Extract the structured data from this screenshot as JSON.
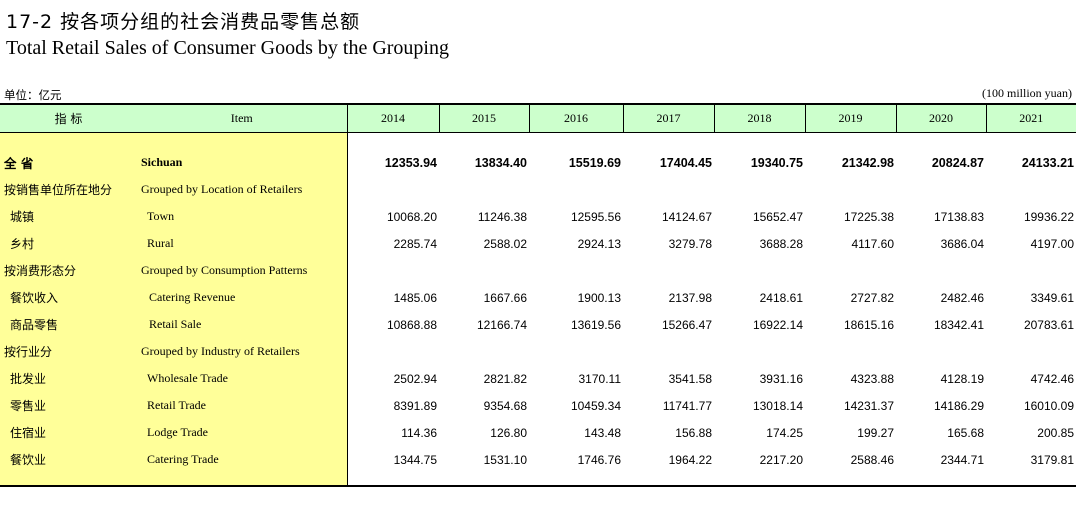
{
  "header": {
    "title_cn": "17-2   按各项分组的社会消费品零售总额",
    "title_en": "Total Retail Sales of Consumer Goods by the Grouping",
    "unit_cn": "单位：亿元",
    "unit_en": "(100 million yuan)"
  },
  "table": {
    "col_cn": "指    标",
    "col_en": "Item",
    "years": [
      "2014",
      "2015",
      "2016",
      "2017",
      "2018",
      "2019",
      "2020",
      "2021"
    ],
    "rows": [
      {
        "cn": "全 省",
        "en": "Sichuan",
        "values": [
          "12353.94",
          "13834.40",
          "15519.69",
          "17404.45",
          "19340.75",
          "21342.98",
          "20824.87",
          "24133.21"
        ]
      },
      {
        "cn": "按销售单位所在地分",
        "en": "Grouped by Location of Retailers",
        "values": [
          "",
          "",
          "",
          "",
          "",
          "",
          "",
          ""
        ]
      },
      {
        "cn": "城镇",
        "en": "Town",
        "values": [
          "10068.20",
          "11246.38",
          "12595.56",
          "14124.67",
          "15652.47",
          "17225.38",
          "17138.83",
          "19936.22"
        ]
      },
      {
        "cn": "乡村",
        "en": "Rural",
        "values": [
          "2285.74",
          "2588.02",
          "2924.13",
          "3279.78",
          "3688.28",
          "4117.60",
          "3686.04",
          "4197.00"
        ]
      },
      {
        "cn": "按消费形态分",
        "en": "Grouped by Consumption Patterns",
        "values": [
          "",
          "",
          "",
          "",
          "",
          "",
          "",
          ""
        ]
      },
      {
        "cn": "餐饮收入",
        "en": "Catering Revenue",
        "values": [
          "1485.06",
          "1667.66",
          "1900.13",
          "2137.98",
          "2418.61",
          "2727.82",
          "2482.46",
          "3349.61"
        ]
      },
      {
        "cn": "商品零售",
        "en": "Retail Sale",
        "values": [
          "10868.88",
          "12166.74",
          "13619.56",
          "15266.47",
          "16922.14",
          "18615.16",
          "18342.41",
          "20783.61"
        ]
      },
      {
        "cn": "按行业分",
        "en": "Grouped by Industry of Retailers",
        "values": [
          "",
          "",
          "",
          "",
          "",
          "",
          "",
          ""
        ]
      },
      {
        "cn": "批发业",
        "en": "Wholesale Trade",
        "values": [
          "2502.94",
          "2821.82",
          "3170.11",
          "3541.58",
          "3931.16",
          "4323.88",
          "4128.19",
          "4742.46"
        ]
      },
      {
        "cn": "零售业",
        "en": "Retail  Trade",
        "values": [
          "8391.89",
          "9354.68",
          "10459.34",
          "11741.77",
          "13018.14",
          "14231.37",
          "14186.29",
          "16010.09"
        ]
      },
      {
        "cn": "住宿业",
        "en": "Lodge Trade",
        "values": [
          "114.36",
          "126.80",
          "143.48",
          "156.88",
          "174.25",
          "199.27",
          "165.68",
          "200.85"
        ]
      },
      {
        "cn": "餐饮业",
        "en": "Catering Trade",
        "values": [
          "1344.75",
          "1531.10",
          "1746.76",
          "1964.22",
          "2217.20",
          "2588.46",
          "2344.71",
          "3179.81"
        ]
      }
    ]
  }
}
